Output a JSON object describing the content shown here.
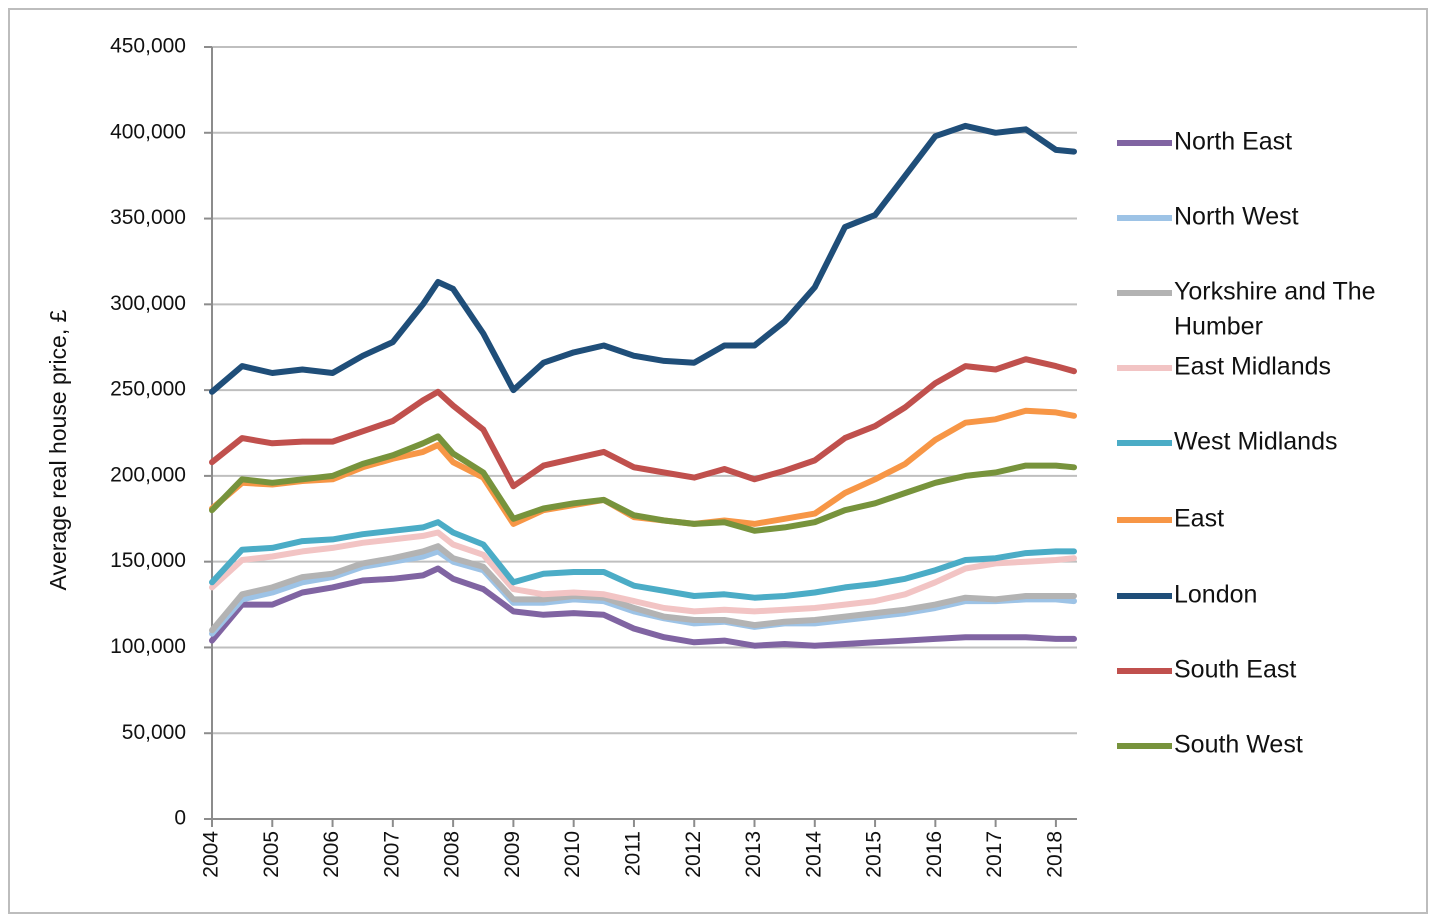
{
  "chart_data": {
    "type": "line",
    "title": "",
    "xlabel": "",
    "ylabel": "Average real house price, £",
    "ylim": [
      0,
      450000
    ],
    "yticks": [
      "0",
      "50,000",
      "100,000",
      "150,000",
      "200,000",
      "250,000",
      "300,000",
      "350,000",
      "400,000",
      "450,000"
    ],
    "yticks_values": [
      0,
      50000,
      100000,
      150000,
      200000,
      250000,
      300000,
      350000,
      400000,
      450000
    ],
    "xlim": [
      2004,
      2018.35
    ],
    "xticks": [
      "2004",
      "2005",
      "2006",
      "2007",
      "2008",
      "2009",
      "2010",
      "2011",
      "2012",
      "2013",
      "2014",
      "2015",
      "2016",
      "2017",
      "2018"
    ],
    "grid": "horizontal",
    "legend_position": "right",
    "x": [
      2004,
      2004.5,
      2005,
      2005.5,
      2006,
      2006.5,
      2007,
      2007.5,
      2007.75,
      2008,
      2008.5,
      2009,
      2009.5,
      2010,
      2010.5,
      2011,
      2011.5,
      2012,
      2012.5,
      2013,
      2013.5,
      2014,
      2014.5,
      2015,
      2015.5,
      2016,
      2016.5,
      2017,
      2017.5,
      2018,
      2018.3
    ],
    "series": [
      {
        "name": "North East",
        "color": "#8064a2",
        "values": [
          104000,
          125000,
          125000,
          132000,
          135000,
          139000,
          140000,
          142000,
          146000,
          140000,
          134000,
          121000,
          119000,
          120000,
          119000,
          111000,
          106000,
          103000,
          104000,
          101000,
          102000,
          101000,
          102000,
          103000,
          104000,
          105000,
          106000,
          106000,
          106000,
          105000,
          105000
        ]
      },
      {
        "name": "North West",
        "color": "#9dc3e6",
        "values": [
          108000,
          128000,
          132000,
          138000,
          141000,
          147000,
          150000,
          153000,
          156000,
          150000,
          145000,
          126000,
          126000,
          128000,
          127000,
          121000,
          117000,
          114000,
          115000,
          112000,
          114000,
          114000,
          116000,
          118000,
          120000,
          123000,
          127000,
          127000,
          128000,
          128000,
          127000
        ]
      },
      {
        "name": "Yorkshire and The Humber",
        "color": "#b3b3b3",
        "values": [
          110000,
          131000,
          135000,
          141000,
          143000,
          149000,
          152000,
          156000,
          159000,
          152000,
          147000,
          128000,
          128000,
          130000,
          129000,
          123000,
          118000,
          116000,
          116000,
          113000,
          115000,
          116000,
          118000,
          120000,
          122000,
          125000,
          129000,
          128000,
          130000,
          130000,
          130000
        ]
      },
      {
        "name": "East Midlands",
        "color": "#f2c4c4",
        "values": [
          135000,
          151000,
          153000,
          156000,
          158000,
          161000,
          163000,
          165000,
          167000,
          160000,
          154000,
          134000,
          131000,
          132000,
          131000,
          127000,
          123000,
          121000,
          122000,
          121000,
          122000,
          123000,
          125000,
          127000,
          131000,
          138000,
          146000,
          149000,
          150000,
          151000,
          152000
        ]
      },
      {
        "name": "West Midlands",
        "color": "#4bacc6",
        "values": [
          138000,
          157000,
          158000,
          162000,
          163000,
          166000,
          168000,
          170000,
          173000,
          167000,
          160000,
          138000,
          143000,
          144000,
          144000,
          136000,
          133000,
          130000,
          131000,
          129000,
          130000,
          132000,
          135000,
          137000,
          140000,
          145000,
          151000,
          152000,
          155000,
          156000,
          156000
        ]
      },
      {
        "name": "East",
        "color": "#f79646",
        "values": [
          181000,
          196000,
          195000,
          197000,
          198000,
          205000,
          210000,
          214000,
          218000,
          208000,
          199000,
          172000,
          180000,
          183000,
          186000,
          176000,
          174000,
          172000,
          174000,
          172000,
          175000,
          178000,
          190000,
          198000,
          207000,
          221000,
          231000,
          233000,
          238000,
          237000,
          235000
        ]
      },
      {
        "name": "London",
        "color": "#1f4e79",
        "values": [
          249000,
          264000,
          260000,
          262000,
          260000,
          270000,
          278000,
          300000,
          313000,
          309000,
          283000,
          250000,
          266000,
          272000,
          276000,
          270000,
          267000,
          266000,
          276000,
          276000,
          290000,
          310000,
          345000,
          352000,
          375000,
          398000,
          404000,
          400000,
          402000,
          390000,
          389000
        ]
      },
      {
        "name": "South East",
        "color": "#c0504d",
        "values": [
          208000,
          222000,
          219000,
          220000,
          220000,
          226000,
          232000,
          244000,
          249000,
          241000,
          227000,
          194000,
          206000,
          210000,
          214000,
          205000,
          202000,
          199000,
          204000,
          198000,
          203000,
          209000,
          222000,
          229000,
          240000,
          254000,
          264000,
          262000,
          268000,
          264000,
          261000
        ]
      },
      {
        "name": "South West",
        "color": "#77933c",
        "values": [
          180000,
          198000,
          196000,
          198000,
          200000,
          207000,
          212000,
          219000,
          223000,
          213000,
          202000,
          175000,
          181000,
          184000,
          186000,
          177000,
          174000,
          172000,
          173000,
          168000,
          170000,
          173000,
          180000,
          184000,
          190000,
          196000,
          200000,
          202000,
          206000,
          206000,
          205000
        ]
      }
    ]
  }
}
